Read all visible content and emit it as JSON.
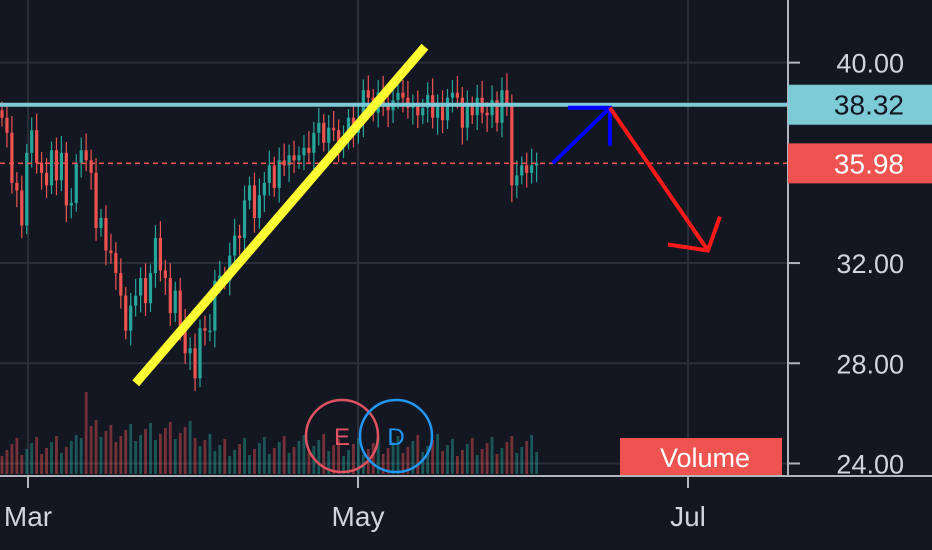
{
  "chart_data": {
    "type": "candlestick",
    "y_ticks": [
      "40.00",
      "32.00",
      "28.00",
      "24.00"
    ],
    "x_ticks": [
      "Mar",
      "May",
      "Jul"
    ],
    "ylim": [
      23.5,
      42.5
    ],
    "grid": true,
    "resistance": {
      "value": 38.32,
      "label": "38.32",
      "color": "#7ecbd8"
    },
    "last_price": {
      "value": 35.98,
      "label": "35.98",
      "color": "#ef5350"
    },
    "volume_label": "Volume",
    "events": [
      {
        "letter": "E",
        "color": "#e05262"
      },
      {
        "letter": "D",
        "color": "#2196f3"
      }
    ],
    "colors": {
      "up": "#26a69a",
      "down": "#ef5350",
      "trendline": "#ffff33",
      "up_arrow": "#0000ff",
      "down_arrow": "#ff1a1a"
    },
    "trendline": {
      "from": [
        6,
        28.0
      ],
      "to": [
        81,
        40.0
      ]
    },
    "projection": {
      "start": [
        108,
        35.98
      ],
      "peak": [
        121,
        38.2
      ],
      "end": [
        141,
        32.5
      ]
    },
    "close": [
      37.8,
      37.2,
      35.2,
      34.9,
      33.5,
      36.4,
      37.3,
      36.0,
      35.6,
      35.1,
      36.5,
      35.3,
      36.4,
      34.3,
      34.4,
      36.0,
      36.5,
      36.1,
      35.6,
      33.4,
      33.8,
      32.5,
      32.4,
      31.6,
      30.7,
      29.3,
      30.3,
      30.7,
      31.4,
      30.4,
      31.6,
      33.0,
      31.7,
      31.4,
      30.0,
      30.9,
      29.5,
      28.4,
      28.6,
      27.4,
      29.4,
      29.3,
      29.3,
      31.3,
      31.5,
      31.3,
      32.3,
      33.1,
      33.0,
      34.5,
      35.1,
      33.8,
      34.7,
      35.2,
      35.9,
      35.0,
      36.1,
      35.9,
      36.3,
      36.1,
      36.3,
      36.6,
      36.4,
      37.2,
      37.6,
      36.8,
      37.4,
      37.3,
      36.7,
      36.9,
      37.8,
      37.2,
      37.7,
      38.9,
      38.6,
      38.0,
      38.8,
      38.3,
      38.1,
      38.5,
      38.8,
      38.6,
      38.2,
      38.3,
      37.9,
      38.2,
      38.7,
      37.8,
      38.3,
      37.7,
      38.6,
      38.8,
      38.6,
      37.4,
      38.3,
      37.9,
      38.6,
      38.0,
      37.9,
      38.5,
      37.6,
      38.9,
      38.3,
      35.1,
      35.5,
      35.9,
      35.6,
      35.9,
      35.98
    ]
  }
}
